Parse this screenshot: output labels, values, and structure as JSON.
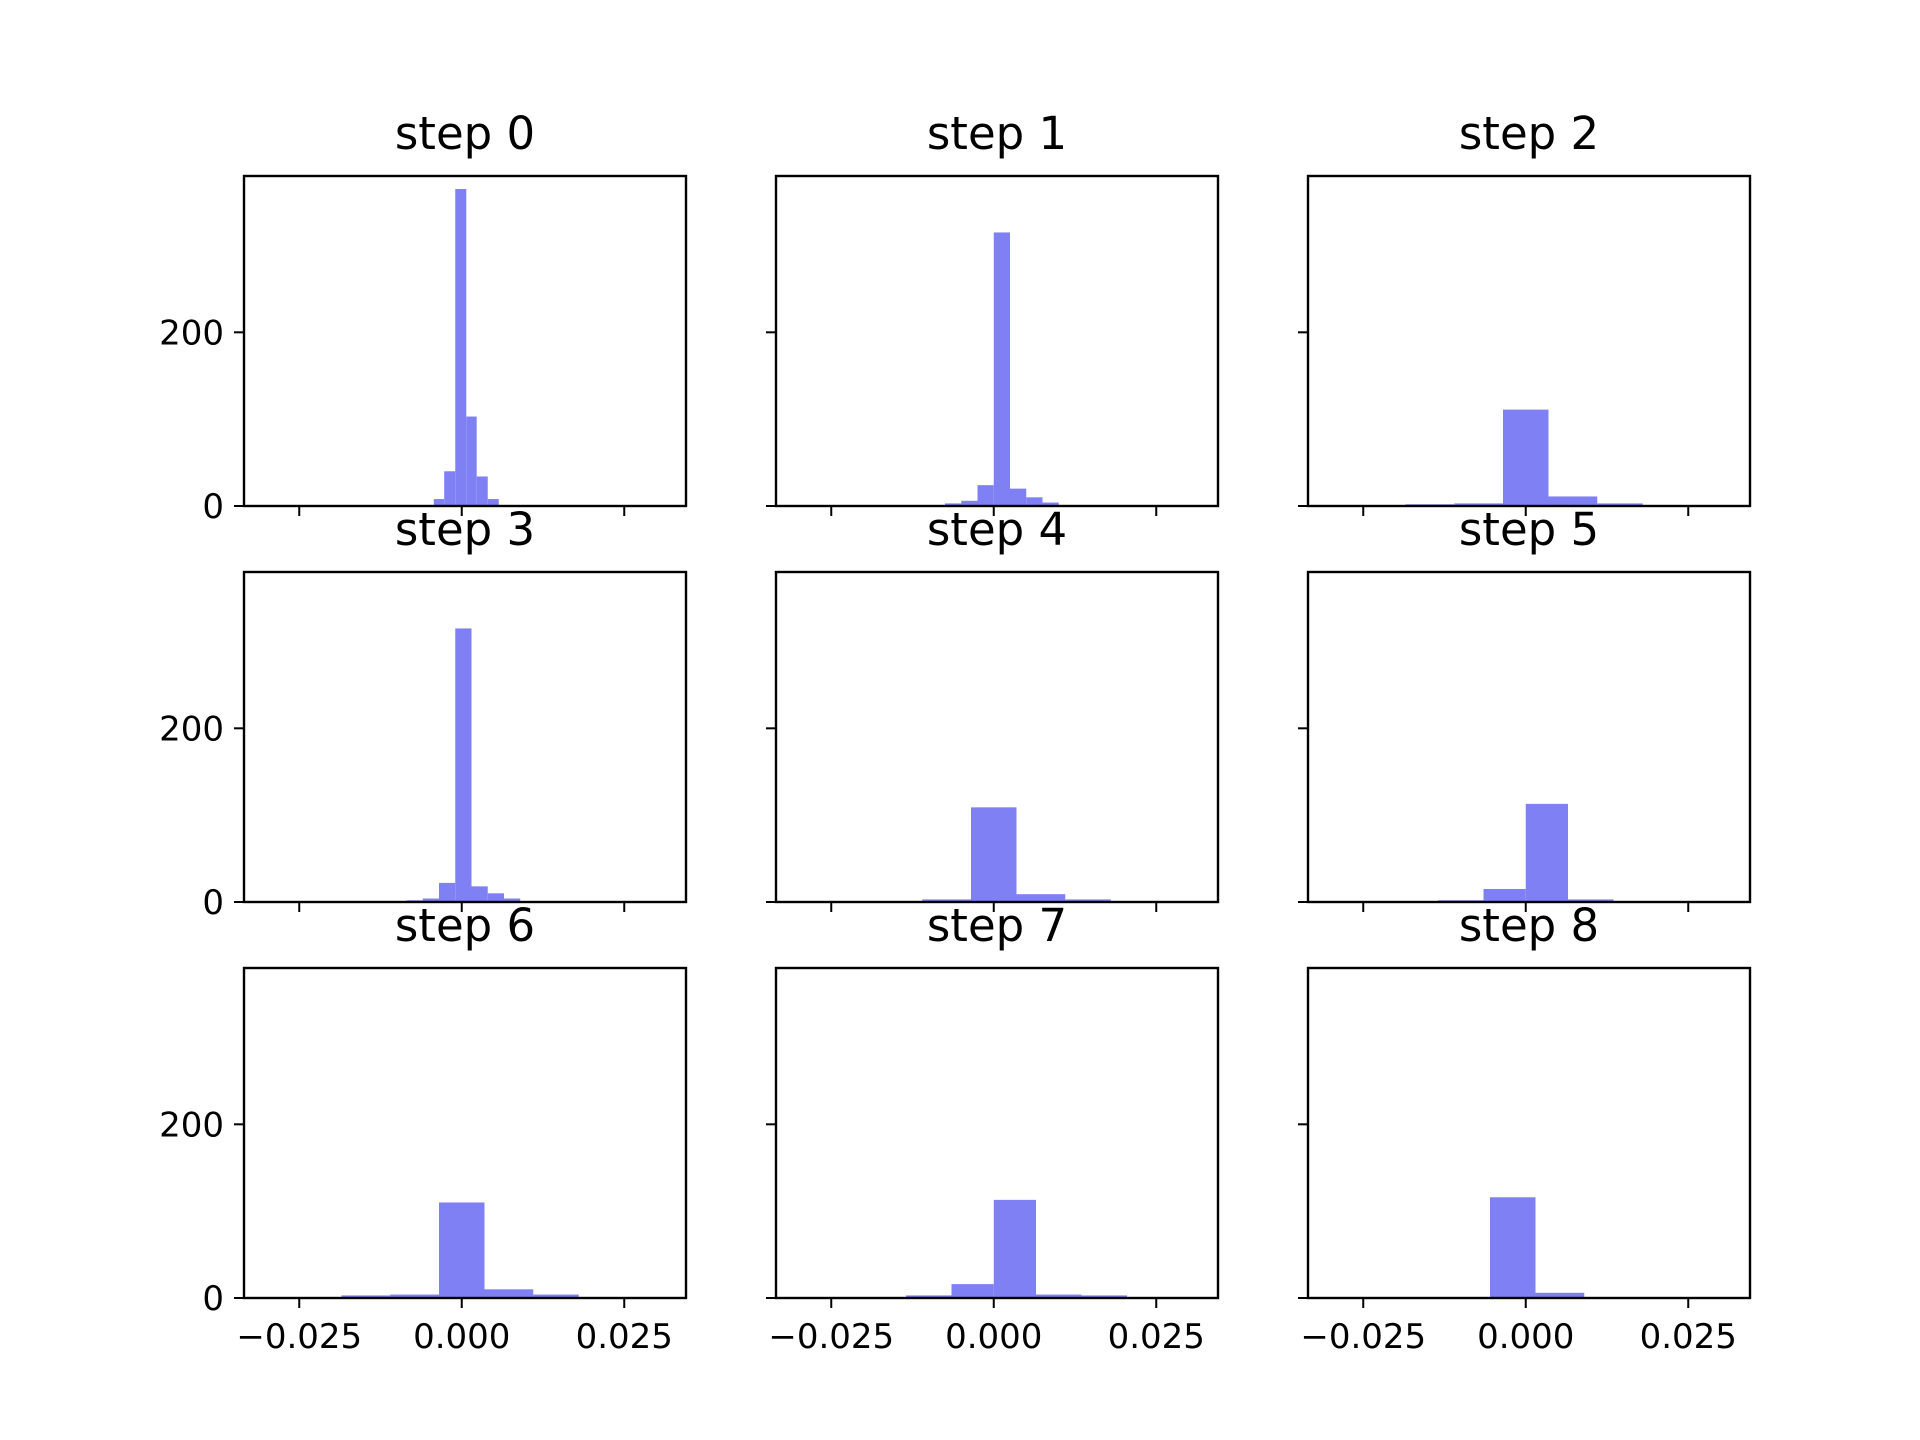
{
  "chart_data": {
    "type": "bar",
    "layout": "3x3 grid of histograms, shared x and y axes",
    "bar_color": "#8080f5",
    "frame_color": "#000000",
    "xlim": [
      -0.0335,
      0.0345
    ],
    "ylim": [
      0,
      380
    ],
    "x_ticks": [
      -0.025,
      0.0,
      0.025
    ],
    "x_tick_labels": [
      "−0.025",
      "0.000",
      "0.025"
    ],
    "y_ticks": [
      0,
      200
    ],
    "y_tick_labels": [
      "0",
      "200"
    ],
    "panels": [
      {
        "title": "step 0",
        "bins": [
          [
            -0.0043,
            -0.0027,
            8
          ],
          [
            -0.0027,
            -0.001,
            40
          ],
          [
            -0.001,
            0.0007,
            365
          ],
          [
            0.0007,
            0.0023,
            103
          ],
          [
            0.0023,
            0.004,
            34
          ],
          [
            0.004,
            0.0057,
            8
          ],
          [
            0.0057,
            0.0073,
            1
          ]
        ]
      },
      {
        "title": "step 1",
        "bins": [
          [
            -0.01,
            -0.0075,
            1
          ],
          [
            -0.0075,
            -0.005,
            3
          ],
          [
            -0.005,
            -0.0025,
            6
          ],
          [
            -0.0025,
            0.0,
            24
          ],
          [
            0.0,
            0.0025,
            315
          ],
          [
            0.0025,
            0.005,
            20
          ],
          [
            0.005,
            0.0075,
            10
          ],
          [
            0.0075,
            0.01,
            4
          ],
          [
            0.01,
            0.0125,
            1
          ]
        ]
      },
      {
        "title": "step 2",
        "bins": [
          [
            -0.0185,
            -0.011,
            2
          ],
          [
            -0.011,
            -0.0035,
            3
          ],
          [
            -0.0035,
            0.0035,
            111
          ],
          [
            0.0035,
            0.011,
            11
          ],
          [
            0.011,
            0.018,
            3
          ],
          [
            0.018,
            0.0255,
            1
          ]
        ]
      },
      {
        "title": "step 3",
        "bins": [
          [
            -0.0085,
            -0.006,
            2
          ],
          [
            -0.006,
            -0.0035,
            4
          ],
          [
            -0.0035,
            -0.001,
            22
          ],
          [
            -0.001,
            0.0015,
            315
          ],
          [
            0.0015,
            0.004,
            18
          ],
          [
            0.004,
            0.0065,
            10
          ],
          [
            0.0065,
            0.009,
            4
          ],
          [
            0.009,
            0.0115,
            1
          ]
        ]
      },
      {
        "title": "step 4",
        "bins": [
          [
            -0.0185,
            -0.011,
            1
          ],
          [
            -0.011,
            -0.0035,
            3
          ],
          [
            -0.0035,
            0.0035,
            109
          ],
          [
            0.0035,
            0.011,
            9
          ],
          [
            0.011,
            0.018,
            3
          ],
          [
            0.018,
            0.0255,
            1
          ]
        ]
      },
      {
        "title": "step 5",
        "bins": [
          [
            -0.0135,
            -0.0065,
            2
          ],
          [
            -0.0065,
            0.0,
            15
          ],
          [
            0.0,
            0.0065,
            113
          ],
          [
            0.0065,
            0.0135,
            3
          ],
          [
            0.0135,
            0.0205,
            1
          ]
        ]
      },
      {
        "title": "step 6",
        "bins": [
          [
            -0.0185,
            -0.011,
            3
          ],
          [
            -0.011,
            -0.0035,
            4
          ],
          [
            -0.0035,
            0.0035,
            110
          ],
          [
            0.0035,
            0.011,
            10
          ],
          [
            0.011,
            0.018,
            4
          ],
          [
            0.018,
            0.0255,
            1
          ]
        ]
      },
      {
        "title": "step 7",
        "bins": [
          [
            -0.0135,
            -0.0065,
            3
          ],
          [
            -0.0065,
            0.0,
            16
          ],
          [
            0.0,
            0.0065,
            113
          ],
          [
            0.0065,
            0.0135,
            4
          ],
          [
            0.0135,
            0.0205,
            3
          ]
        ]
      },
      {
        "title": "step 8",
        "bins": [
          [
            -0.0135,
            -0.0055,
            1
          ],
          [
            -0.0055,
            0.0015,
            116
          ],
          [
            0.0015,
            0.009,
            6
          ],
          [
            0.009,
            0.0165,
            1
          ]
        ]
      }
    ]
  }
}
